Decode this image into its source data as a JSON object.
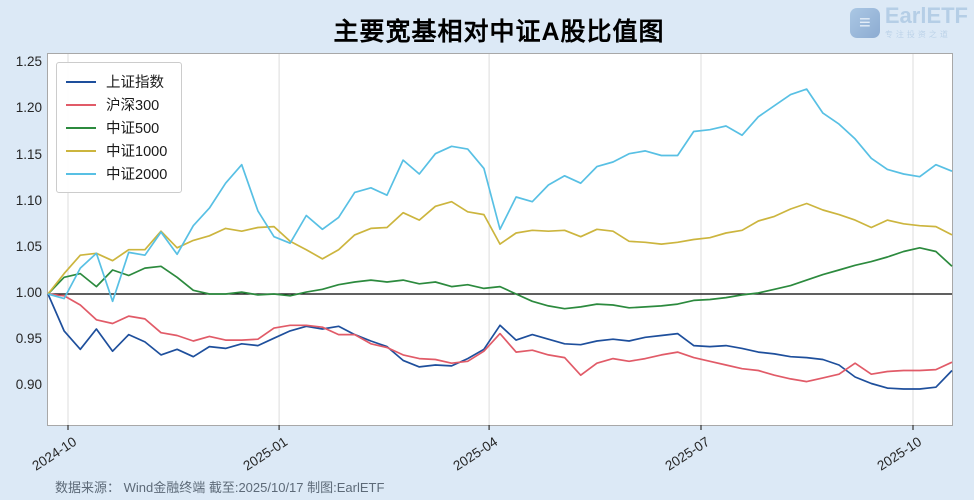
{
  "page": {
    "title": "主要宽基相对中证A股比值图"
  },
  "logo": {
    "brand": "EarlETF",
    "tagline": "专注投资之道",
    "glyph": "≡"
  },
  "footer": {
    "source": "数据来源： Wind金融终端 截至:2025/10/17 制图:EarlETF"
  },
  "chart_data": {
    "type": "line",
    "title": "主要宽基相对中证A股比值图",
    "xlabel": "",
    "ylabel": "",
    "grid": "vertical-only",
    "legend_position": "upper-left",
    "baseline": 1.0,
    "baseline_color": "#000000",
    "ylim": [
      0.858,
      1.26
    ],
    "y_ticks": [
      1.25,
      1.2,
      1.15,
      1.1,
      1.05,
      1.0,
      0.95,
      0.9
    ],
    "x_range": [
      "2024-09-22",
      "2025-10-17"
    ],
    "sampling": "weekly",
    "x_ticks": [
      {
        "label": "2024-10",
        "pos": 0.0221
      },
      {
        "label": "2025-01",
        "pos": 0.2556
      },
      {
        "label": "2025-04",
        "pos": 0.4879
      },
      {
        "label": "2025-07",
        "pos": 0.7224
      },
      {
        "label": "2025-10",
        "pos": 0.9569
      }
    ],
    "series": [
      {
        "id": "sse-index",
        "name": "上证指数",
        "color": "#1e4f9c",
        "values": [
          1.0,
          0.96,
          0.94,
          0.962,
          0.938,
          0.956,
          0.948,
          0.934,
          0.94,
          0.932,
          0.943,
          0.941,
          0.946,
          0.944,
          0.952,
          0.96,
          0.965,
          0.962,
          0.965,
          0.956,
          0.949,
          0.943,
          0.928,
          0.921,
          0.923,
          0.922,
          0.93,
          0.94,
          0.966,
          0.95,
          0.956,
          0.951,
          0.946,
          0.945,
          0.949,
          0.951,
          0.949,
          0.953,
          0.955,
          0.957,
          0.944,
          0.943,
          0.944,
          0.941,
          0.937,
          0.935,
          0.932,
          0.931,
          0.929,
          0.923,
          0.91,
          0.903,
          0.898,
          0.897,
          0.897,
          0.899,
          0.917
        ]
      },
      {
        "id": "csi-300",
        "name": "沪深300",
        "color": "#e15b68",
        "values": [
          1.0,
          0.998,
          0.988,
          0.972,
          0.968,
          0.976,
          0.973,
          0.958,
          0.955,
          0.949,
          0.954,
          0.95,
          0.95,
          0.951,
          0.963,
          0.966,
          0.966,
          0.964,
          0.956,
          0.956,
          0.946,
          0.942,
          0.934,
          0.93,
          0.929,
          0.925,
          0.927,
          0.938,
          0.957,
          0.937,
          0.939,
          0.934,
          0.931,
          0.912,
          0.925,
          0.93,
          0.927,
          0.93,
          0.934,
          0.937,
          0.931,
          0.927,
          0.923,
          0.919,
          0.917,
          0.912,
          0.908,
          0.905,
          0.909,
          0.913,
          0.925,
          0.913,
          0.916,
          0.917,
          0.917,
          0.918,
          0.926
        ]
      },
      {
        "id": "csi-500",
        "name": "中证500",
        "color": "#2c8a3e",
        "values": [
          1.0,
          1.018,
          1.022,
          1.008,
          1.026,
          1.02,
          1.028,
          1.03,
          1.018,
          1.004,
          1.0,
          1.0,
          1.002,
          0.999,
          1.0,
          0.998,
          1.002,
          1.005,
          1.01,
          1.013,
          1.015,
          1.013,
          1.015,
          1.011,
          1.013,
          1.008,
          1.01,
          1.006,
          1.008,
          1.0,
          0.992,
          0.987,
          0.984,
          0.986,
          0.989,
          0.988,
          0.985,
          0.986,
          0.987,
          0.989,
          0.993,
          0.994,
          0.996,
          0.999,
          1.001,
          1.005,
          1.009,
          1.015,
          1.021,
          1.026,
          1.031,
          1.035,
          1.04,
          1.046,
          1.05,
          1.046,
          1.03
        ]
      },
      {
        "id": "csi-1000",
        "name": "中证1000",
        "color": "#ccb53e",
        "values": [
          1.0,
          1.022,
          1.042,
          1.044,
          1.036,
          1.048,
          1.048,
          1.068,
          1.05,
          1.058,
          1.063,
          1.071,
          1.068,
          1.072,
          1.073,
          1.057,
          1.048,
          1.038,
          1.048,
          1.064,
          1.071,
          1.072,
          1.088,
          1.08,
          1.095,
          1.1,
          1.089,
          1.086,
          1.054,
          1.066,
          1.069,
          1.068,
          1.069,
          1.062,
          1.07,
          1.068,
          1.057,
          1.056,
          1.054,
          1.056,
          1.059,
          1.061,
          1.066,
          1.069,
          1.079,
          1.084,
          1.092,
          1.098,
          1.091,
          1.086,
          1.08,
          1.072,
          1.08,
          1.076,
          1.074,
          1.073,
          1.064
        ]
      },
      {
        "id": "csi-2000",
        "name": "中证2000",
        "color": "#58c0e4",
        "values": [
          1.0,
          0.995,
          1.028,
          1.044,
          0.992,
          1.045,
          1.042,
          1.067,
          1.043,
          1.074,
          1.093,
          1.12,
          1.14,
          1.09,
          1.062,
          1.055,
          1.085,
          1.07,
          1.083,
          1.11,
          1.115,
          1.107,
          1.145,
          1.13,
          1.152,
          1.16,
          1.157,
          1.136,
          1.07,
          1.105,
          1.1,
          1.118,
          1.128,
          1.12,
          1.138,
          1.143,
          1.152,
          1.155,
          1.15,
          1.15,
          1.176,
          1.178,
          1.182,
          1.172,
          1.192,
          1.204,
          1.216,
          1.222,
          1.196,
          1.184,
          1.168,
          1.147,
          1.135,
          1.13,
          1.127,
          1.14,
          1.133
        ]
      }
    ]
  }
}
